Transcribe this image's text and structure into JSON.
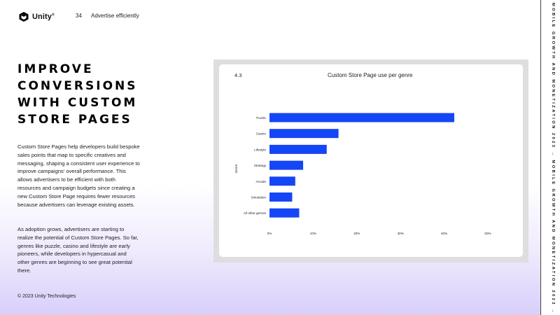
{
  "header": {
    "logo_text": "Unity",
    "logo_mark": "®",
    "page_number": "34",
    "section_title": "Advertise efficiently"
  },
  "heading_lines": [
    "IMPROVE",
    "CONVERSIONS",
    "WITH CUSTOM",
    "STORE PAGES"
  ],
  "body": {
    "paragraph_1": "Custom Store Pages help developers build bespoke sales points that map to specific creatives and messaging, shaping a consistent user experience to improve campaigns' overall performance. This allows advertisers to be efficient with both resources and campaign budgets since creating a new Custom Store Page requires fewer resources because advertisers can leverage existing assets.",
    "paragraph_2": "As adoption grows, advertisers are starting to realize the potential of Custom Store Pages. So far, genres like puzzle, casino and lifestyle are early pioneers, while developers in hypercasual and other genres are beginning to see great potential there."
  },
  "footer": {
    "copyright": "© 2023 Unity Technologies"
  },
  "side_text": "MOBILE GROWTH AND MONETIZATION 2023 → MOBILE GROWTH AND MONETIZATION 2023 →",
  "colors": {
    "bar": "#1546f5",
    "frame": "#dedede",
    "accent_gradient": "#d9cffb"
  },
  "chart_data": {
    "type": "bar",
    "orientation": "horizontal",
    "figure_number": "4.3",
    "title": "Custom Store Page use per genre",
    "xlabel": "",
    "ylabel": "Genre",
    "categories": [
      "Puzzle",
      "Casino",
      "Lifestyle",
      "Strategy",
      "Arcade",
      "Simulation",
      "All other genres"
    ],
    "values": [
      42.3,
      15.8,
      13.1,
      7.7,
      5.9,
      5.2,
      6.8
    ],
    "xlim": [
      0,
      50
    ],
    "xticks": [
      "0%",
      "10%",
      "20%",
      "30%",
      "40%",
      "50%"
    ],
    "grid": false,
    "legend": "none"
  }
}
